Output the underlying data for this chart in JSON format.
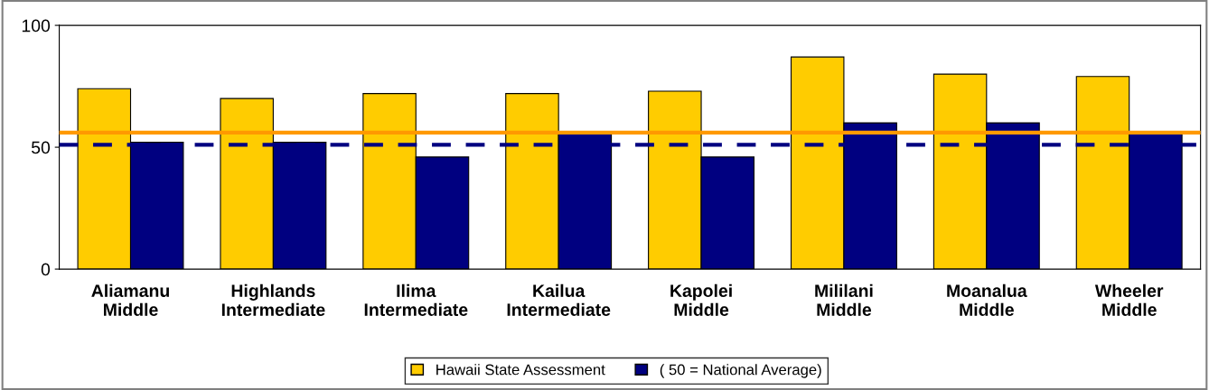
{
  "chart_data": {
    "type": "bar",
    "categories": [
      "Aliamanu\nMiddle",
      "Highlands\nIntermediate",
      "Ilima\nIntermediate",
      "Kailua\nIntermediate",
      "Kapolei\nMiddle",
      "Mililani\nMiddle",
      "Moanalua\nMiddle",
      "Wheeler\nMiddle"
    ],
    "series": [
      {
        "name": "Hawaii State Assessment",
        "color": "#ffcc00",
        "values": [
          74,
          70,
          72,
          72,
          73,
          87,
          80,
          79
        ]
      },
      {
        "name": "( 50 = National Average)",
        "color": "#000080",
        "values": [
          52,
          52,
          46,
          56,
          46,
          60,
          60,
          56
        ]
      }
    ],
    "ylim": [
      0,
      100
    ],
    "yticks": [
      0,
      50,
      100
    ],
    "grid": false,
    "legend": "bottom",
    "ref_lines": [
      {
        "axis": "y",
        "value": 56,
        "color": "#ff9900",
        "line_style": "solid"
      },
      {
        "axis": "y",
        "value": 51,
        "color": "#000080",
        "line_style": "dashed"
      }
    ]
  }
}
